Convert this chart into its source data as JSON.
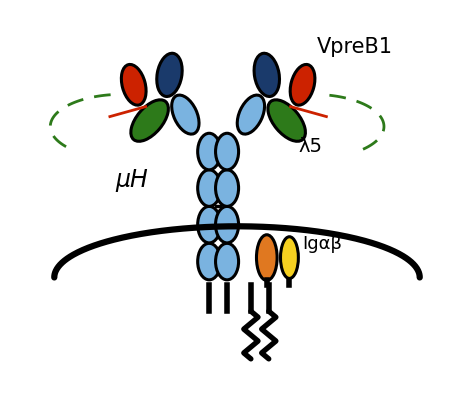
{
  "bg_color": "#ffffff",
  "light_blue": "#7ab3e0",
  "dark_blue": "#1a3a6b",
  "red": "#cc2200",
  "green": "#2d7a1a",
  "orange": "#e07820",
  "yellow": "#f5d020",
  "black": "#000000",
  "label_muH": "μH",
  "label_lambda5": "λ5",
  "label_VpreB1": "VpreB1",
  "label_Igab": "Igαβ"
}
